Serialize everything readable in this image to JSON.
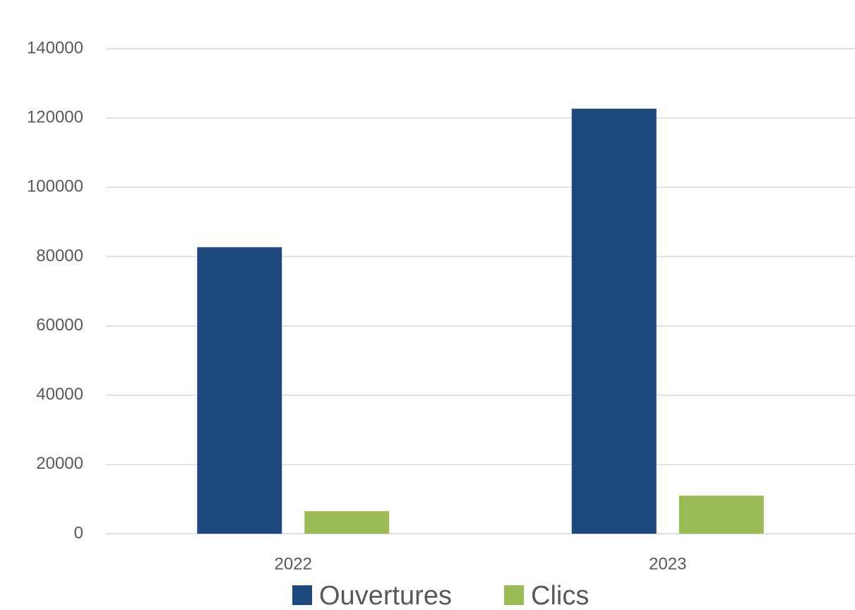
{
  "chart_data": {
    "type": "bar",
    "categories": [
      "2022",
      "2023"
    ],
    "series": [
      {
        "name": "Ouvertures",
        "color": "#1f497d",
        "values": [
          82700,
          122700
        ]
      },
      {
        "name": "Clics",
        "color": "#9bbb59",
        "values": [
          6500,
          11000
        ]
      }
    ],
    "ylim": [
      0,
      140000
    ],
    "yticks": [
      0,
      20000,
      40000,
      60000,
      80000,
      100000,
      120000,
      140000
    ],
    "grid": true,
    "legend": "bottom"
  }
}
